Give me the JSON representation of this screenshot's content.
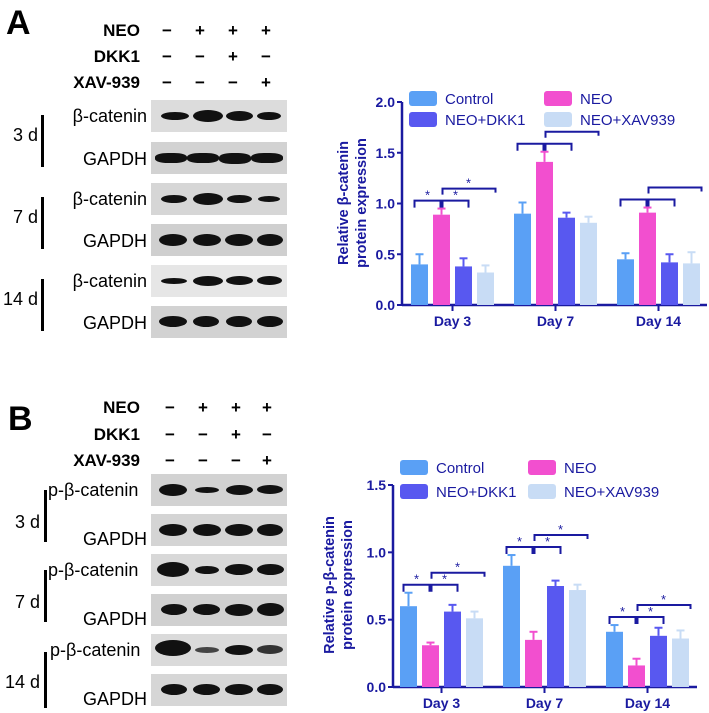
{
  "panels": [
    {
      "letter": "A",
      "conditions": [
        {
          "label": "NEO",
          "signs": [
            "−",
            "+",
            "+",
            "+"
          ]
        },
        {
          "label": "DKK1",
          "signs": [
            "−",
            "−",
            "+",
            "−"
          ]
        },
        {
          "label": "XAV-939",
          "signs": [
            "−",
            "−",
            "−",
            "+"
          ]
        }
      ],
      "timepoints": [
        {
          "day": "3 d",
          "target": "β-catenin",
          "control": "GAPDH"
        },
        {
          "day": "7 d",
          "target": "β-catenin",
          "control": "GAPDH"
        },
        {
          "day": "14 d",
          "target": "β-catenin",
          "control": "GAPDH"
        }
      ]
    },
    {
      "letter": "B",
      "conditions": [
        {
          "label": "NEO",
          "signs": [
            "−",
            "+",
            "+",
            "+"
          ]
        },
        {
          "label": "DKK1",
          "signs": [
            "−",
            "−",
            "+",
            "−"
          ]
        },
        {
          "label": "XAV-939",
          "signs": [
            "−",
            "−",
            "−",
            "+"
          ]
        }
      ],
      "timepoints": [
        {
          "day": "3 d",
          "target": "p-β-catenin",
          "control": "GAPDH"
        },
        {
          "day": "7 d",
          "target": "p-β-catenin",
          "control": "GAPDH"
        },
        {
          "day": "14 d",
          "target": "p-β-catenin",
          "control": "GAPDH"
        }
      ]
    }
  ],
  "colors": {
    "control": "#5aa0f5",
    "neo": "#f24fcf",
    "neo_dkk1": "#5858f0",
    "neo_xav939": "#c8dcf5",
    "axis": "#1a1aa0"
  },
  "chart_data": [
    {
      "type": "bar",
      "title": "",
      "xlabel": "",
      "ylabel": "Relative β-catenin protein expression",
      "ylabel_lines": [
        "Relative β-catenin",
        "protein expression"
      ],
      "categories": [
        "Day 3",
        "Day 7",
        "Day 14"
      ],
      "ylim": [
        0,
        2.0
      ],
      "yticks": [
        "0.0",
        "0.5",
        "1.0",
        "1.5",
        "2.0"
      ],
      "legend": [
        "Control",
        "NEO",
        "NEO+DKK1",
        "NEO+XAV939"
      ],
      "legend_position": "top",
      "grid": false,
      "series": [
        {
          "name": "Control",
          "values": [
            0.4,
            0.9,
            0.45
          ],
          "errors": [
            0.1,
            0.11,
            0.06
          ]
        },
        {
          "name": "NEO",
          "values": [
            0.89,
            1.41,
            0.91
          ],
          "errors": [
            0.06,
            0.1,
            0.05
          ]
        },
        {
          "name": "NEO+DKK1",
          "values": [
            0.38,
            0.86,
            0.42
          ],
          "errors": [
            0.08,
            0.05,
            0.08
          ]
        },
        {
          "name": "NEO+XAV939",
          "values": [
            0.32,
            0.81,
            0.41
          ],
          "errors": [
            0.07,
            0.06,
            0.11
          ]
        }
      ],
      "annotations": [
        {
          "category": "Day 3",
          "brackets": [
            {
              "from": "Control",
              "to": "NEO",
              "label": "*"
            },
            {
              "from": "NEO",
              "to": "NEO+DKK1",
              "label": "*"
            },
            {
              "from": "NEO",
              "to": "NEO+XAV939",
              "label": "*"
            }
          ]
        },
        {
          "category": "Day 7",
          "brackets": [
            {
              "from": "Control",
              "to": "NEO",
              "label": ""
            },
            {
              "from": "NEO",
              "to": "NEO+DKK1",
              "label": ""
            },
            {
              "from": "NEO",
              "to": "NEO+XAV939",
              "label": ""
            }
          ]
        },
        {
          "category": "Day 14",
          "brackets": [
            {
              "from": "Control",
              "to": "NEO",
              "label": ""
            },
            {
              "from": "NEO",
              "to": "NEO+DKK1",
              "label": ""
            },
            {
              "from": "NEO",
              "to": "NEO+XAV939",
              "label": ""
            }
          ]
        }
      ]
    },
    {
      "type": "bar",
      "title": "",
      "xlabel": "",
      "ylabel": "Relative p-β-catenin protein expression",
      "ylabel_lines": [
        "Relative p-β-catenin",
        "protein expression"
      ],
      "categories": [
        "Day 3",
        "Day 7",
        "Day 14"
      ],
      "ylim": [
        0,
        1.5
      ],
      "yticks": [
        "0.0",
        "0.5",
        "1.0",
        "1.5"
      ],
      "legend": [
        "Control",
        "NEO",
        "NEO+DKK1",
        "NEO+XAV939"
      ],
      "legend_position": "top",
      "grid": false,
      "series": [
        {
          "name": "Control",
          "values": [
            0.6,
            0.9,
            0.41
          ],
          "errors": [
            0.1,
            0.08,
            0.05
          ]
        },
        {
          "name": "NEO",
          "values": [
            0.31,
            0.35,
            0.16
          ],
          "errors": [
            0.02,
            0.06,
            0.05
          ]
        },
        {
          "name": "NEO+DKK1",
          "values": [
            0.56,
            0.75,
            0.38
          ],
          "errors": [
            0.05,
            0.04,
            0.06
          ]
        },
        {
          "name": "NEO+XAV939",
          "values": [
            0.51,
            0.72,
            0.36
          ],
          "errors": [
            0.05,
            0.04,
            0.06
          ]
        }
      ],
      "annotations": [
        {
          "category": "Day 3",
          "brackets": [
            {
              "from": "Control",
              "to": "NEO",
              "label": "*"
            },
            {
              "from": "NEO",
              "to": "NEO+DKK1",
              "label": "*"
            },
            {
              "from": "NEO",
              "to": "NEO+XAV939",
              "label": "*"
            }
          ]
        },
        {
          "category": "Day 7",
          "brackets": [
            {
              "from": "Control",
              "to": "NEO",
              "label": "*"
            },
            {
              "from": "NEO",
              "to": "NEO+DKK1",
              "label": "*"
            },
            {
              "from": "NEO",
              "to": "NEO+XAV939",
              "label": "*"
            }
          ]
        },
        {
          "category": "Day 14",
          "brackets": [
            {
              "from": "Control",
              "to": "NEO",
              "label": "*"
            },
            {
              "from": "NEO",
              "to": "NEO+DKK1",
              "label": "*"
            },
            {
              "from": "NEO",
              "to": "NEO+XAV939",
              "label": "*"
            }
          ]
        }
      ]
    }
  ]
}
